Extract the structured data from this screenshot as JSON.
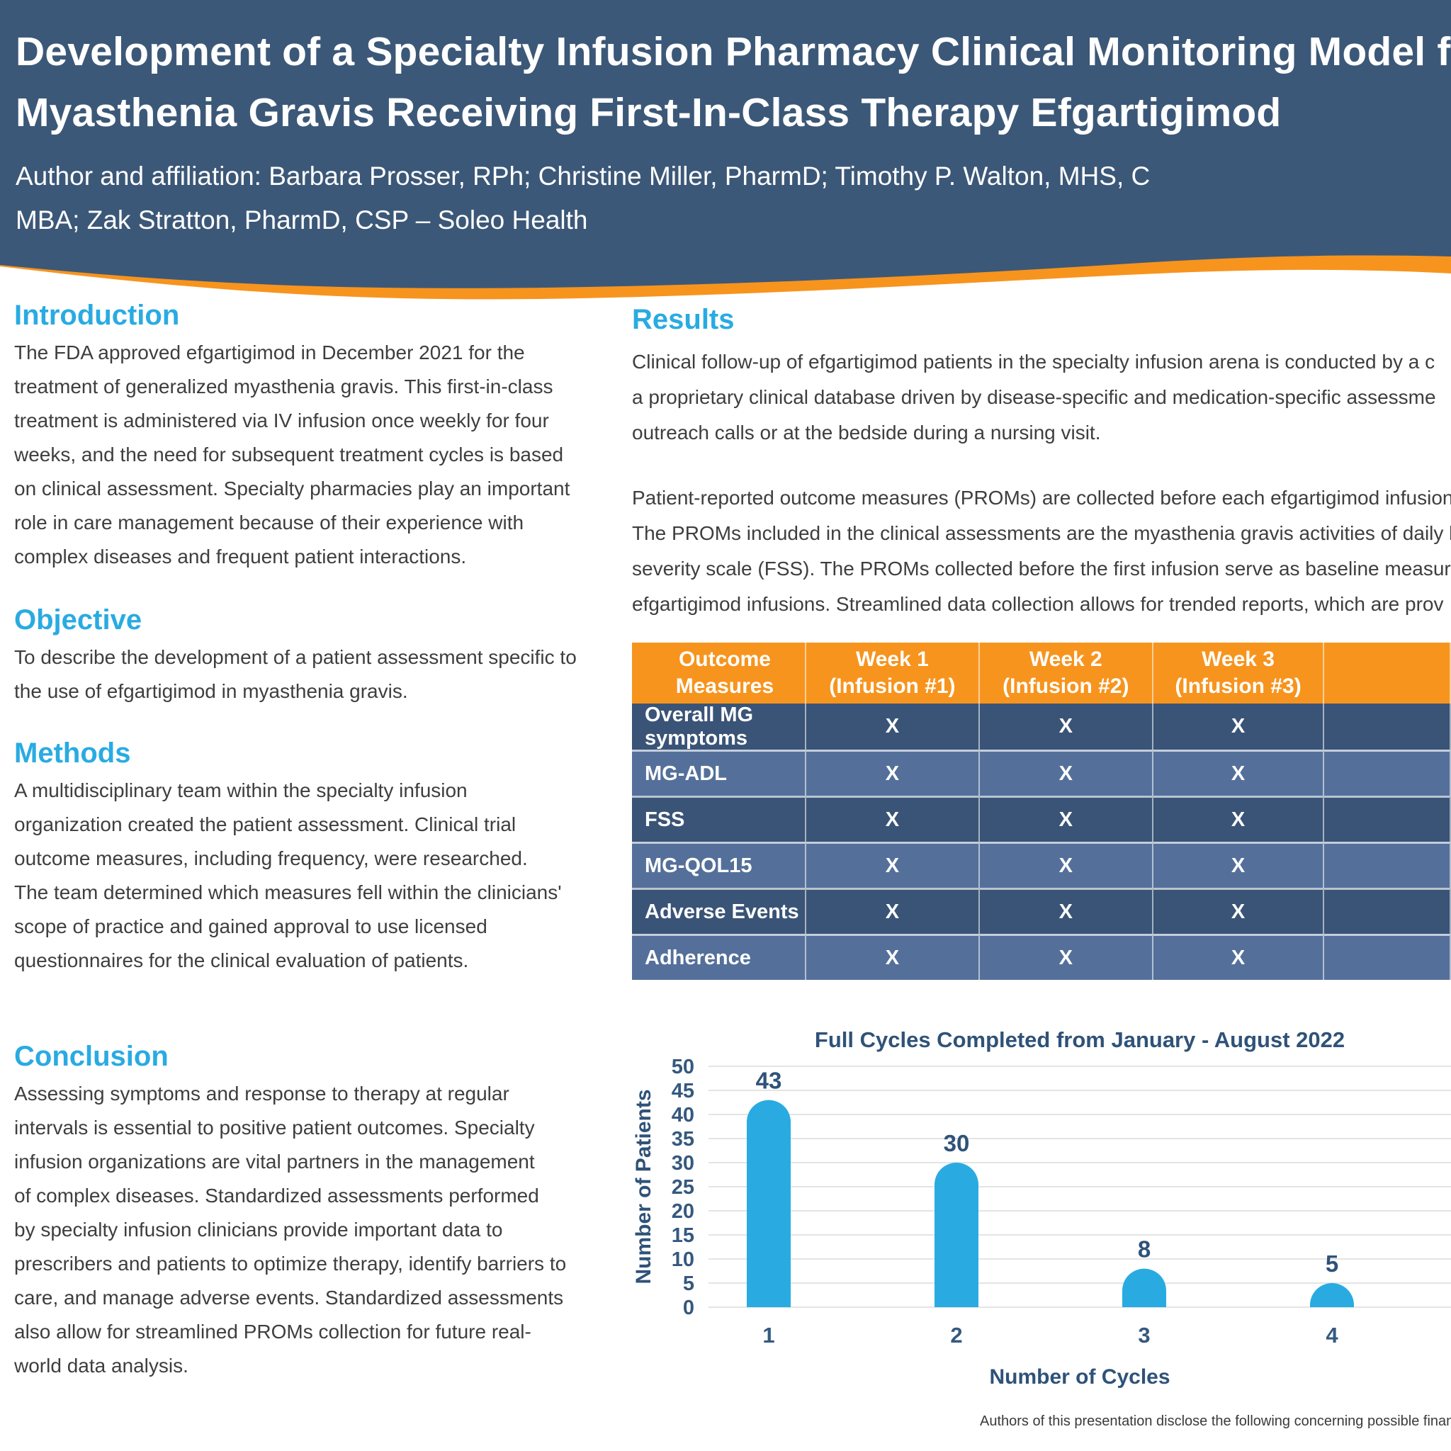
{
  "colors": {
    "navy": "#3C5878",
    "orange": "#F7941E",
    "cyan": "#29ABE2",
    "tdark": "#3A5477",
    "tlight": "#54709A",
    "bar": "#29ABE2",
    "chart_text": "#2F5278",
    "grid": "#E4E4E4"
  },
  "header": {
    "title_lines": [
      "Development of a Specialty Infusion Pharmacy Clinical Monitoring Model fo",
      "Myasthenia Gravis Receiving First-In-Class Therapy Efgartigimod"
    ],
    "author_lines": [
      "Author and affiliation: Barbara Prosser, RPh; Christine Miller, PharmD; Timothy P. Walton, MHS, C",
      "MBA; Zak Stratton, PharmD, CSP – Soleo Health"
    ]
  },
  "sections": {
    "introduction": {
      "heading": "Introduction",
      "lines": [
        "The FDA approved efgartigimod in December 2021 for the",
        "treatment of generalized myasthenia gravis. This first-in-class",
        "treatment is administered via IV infusion once weekly for four",
        "weeks, and the need for subsequent treatment cycles is based",
        "on clinical assessment. Specialty pharmacies play an important",
        "role in care management because of their experience with",
        "complex diseases and frequent patient interactions."
      ]
    },
    "objective": {
      "heading": "Objective",
      "lines": [
        "To describe the development of a patient assessment specific to",
        "the use of efgartigimod in myasthenia gravis."
      ]
    },
    "methods": {
      "heading": "Methods",
      "lines": [
        "A multidisciplinary team within the specialty infusion",
        "organization created the patient assessment. Clinical trial",
        "outcome measures, including frequency, were researched.",
        "The team determined which measures fell within the clinicians'",
        "scope of practice and gained approval to use licensed",
        "questionnaires for the clinical evaluation of patients."
      ]
    },
    "conclusion": {
      "heading": "Conclusion",
      "lines": [
        "Assessing symptoms and response to therapy at regular",
        "intervals is essential to positive patient outcomes. Specialty",
        "infusion organizations are vital partners in the management",
        "of complex diseases. Standardized assessments performed",
        "by specialty infusion clinicians provide important data to",
        "prescribers and patients to optimize therapy, identify barriers to",
        "care, and manage adverse events. Standardized assessments",
        "also allow for streamlined PROMs collection for future real-",
        "world data analysis."
      ]
    },
    "results": {
      "heading": "Results",
      "paragraph1_lines": [
        "Clinical follow-up of efgartigimod patients in the specialty infusion arena is conducted by a c",
        "a proprietary clinical database driven by disease-specific and medication-specific assessme",
        "outreach calls or at the bedside during a nursing visit."
      ],
      "paragraph2_lines": [
        "Patient-reported outcome measures (PROMs) are collected before each efgartigimod infusion",
        "The PROMs included in the clinical assessments are the myasthenia gravis activities of daily li",
        "severity scale (FSS). The PROMs collected before the first infusion serve as baseline measurem",
        "efgartigimod infusions. Streamlined data collection allows for trended reports, which are prov"
      ]
    }
  },
  "table": {
    "header": [
      [
        "Outcome Measures"
      ],
      [
        "Week 1",
        "(Infusion #1)"
      ],
      [
        "Week 2",
        "(Infusion #2)"
      ],
      [
        "Week 3",
        "(Infusion #3)"
      ],
      [
        ""
      ]
    ],
    "rows": [
      {
        "label": "Overall MG symptoms",
        "cells": [
          "X",
          "X",
          "X",
          ""
        ]
      },
      {
        "label": "MG-ADL",
        "cells": [
          "X",
          "X",
          "X",
          ""
        ]
      },
      {
        "label": "FSS",
        "cells": [
          "X",
          "X",
          "X",
          ""
        ]
      },
      {
        "label": "MG-QOL15",
        "cells": [
          "X",
          "X",
          "X",
          ""
        ]
      },
      {
        "label": "Adverse Events",
        "cells": [
          "X",
          "X",
          "X",
          ""
        ]
      },
      {
        "label": "Adherence",
        "cells": [
          "X",
          "X",
          "X",
          ""
        ]
      }
    ]
  },
  "chart_data": {
    "type": "bar",
    "title": "Full Cycles Completed from January - August 2022",
    "categories": [
      "1",
      "2",
      "3",
      "4"
    ],
    "values": [
      43,
      30,
      8,
      5
    ],
    "xlabel": "Number of Cycles",
    "ylabel": "Number of Patients",
    "ylim": [
      0,
      50
    ],
    "ytick_step": 5,
    "grid": true,
    "legend": false
  },
  "footer": {
    "disclosure": "Authors of this presentation disclose the following concerning possible financial or pe"
  }
}
